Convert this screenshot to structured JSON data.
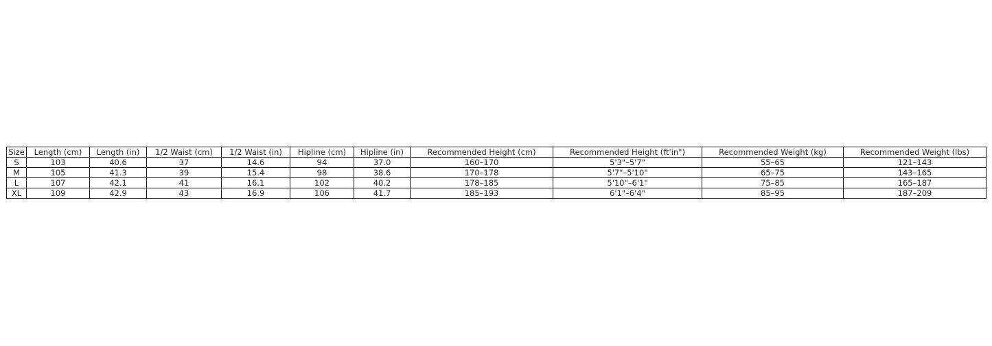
{
  "chart_data": {
    "type": "table",
    "title": "",
    "columns": [
      "Size",
      "Length (cm)",
      "Length (in)",
      "1/2 Waist (cm)",
      "1/2 Waist (in)",
      "Hipline (cm)",
      "Hipline (in)",
      "Recommended Height (cm)",
      "Recommended Height (ft'in\")",
      "Recommended Weight (kg)",
      "Recommended Weight (lbs)"
    ],
    "rows": [
      [
        "S",
        "103",
        "40.6",
        "37",
        "14.6",
        "94",
        "37.0",
        "160–170",
        "5'3\"–5'7\"",
        "55–65",
        "121–143"
      ],
      [
        "M",
        "105",
        "41.3",
        "39",
        "15.4",
        "98",
        "38.6",
        "170–178",
        "5'7\"–5'10\"",
        "65–75",
        "143–165"
      ],
      [
        "L",
        "107",
        "42.1",
        "41",
        "16.1",
        "102",
        "40.2",
        "178–185",
        "5'10\"–6'1\"",
        "75–85",
        "165–187"
      ],
      [
        "XL",
        "109",
        "42.9",
        "43",
        "16.9",
        "106",
        "41.7",
        "185–193",
        "6'1\"–6'4\"",
        "85–95",
        "187–209"
      ]
    ],
    "colors": {
      "border": "#1a1a1a",
      "text": "#262626",
      "background": "#ffffff"
    }
  }
}
